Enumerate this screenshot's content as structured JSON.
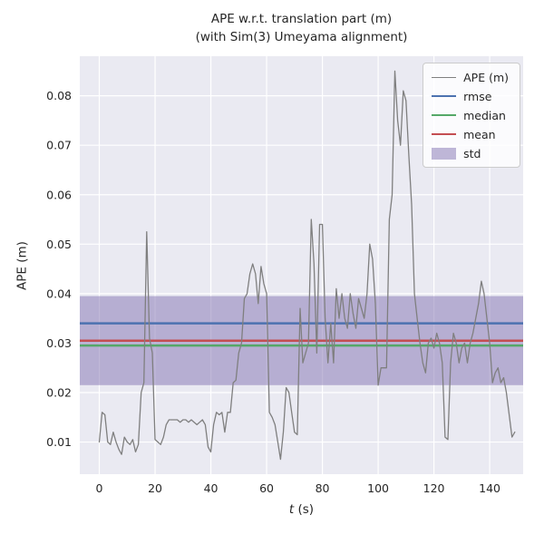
{
  "chart_data": {
    "type": "line",
    "title": "APE w.r.t. translation part (m)",
    "subtitle": "(with Sim(3) Umeyama alignment)",
    "xlabel_math": "t",
    "xlabel_unit": " (s)",
    "ylabel": "APE (m)",
    "xlim": [
      -7,
      152
    ],
    "ylim": [
      0.0035,
      0.088
    ],
    "grid": true,
    "legend_position": "upper right",
    "xticks": [
      0,
      20,
      40,
      60,
      80,
      100,
      120,
      140
    ],
    "xtick_labels": [
      "0",
      "20",
      "40",
      "60",
      "80",
      "100",
      "120",
      "140"
    ],
    "yticks": [
      0.01,
      0.02,
      0.03,
      0.04,
      0.05,
      0.06,
      0.07,
      0.08
    ],
    "ytick_labels": [
      "0.01",
      "0.02",
      "0.03",
      "0.04",
      "0.05",
      "0.06",
      "0.07",
      "0.08"
    ],
    "colors": {
      "axes_bg": "#EAEAF2",
      "grid": "#FFFFFF",
      "series": "#7f7f7f",
      "rmse": "#4C72B0",
      "median": "#55A868",
      "mean": "#C44E52",
      "std": "#8172B2",
      "text": "#262626"
    },
    "stats": {
      "rmse": 0.034,
      "median": 0.0295,
      "mean": 0.0305,
      "std": 0.009
    },
    "stat_lines": [
      {
        "name": "rmse",
        "value": 0.034,
        "color": "#4C72B0"
      },
      {
        "name": "median",
        "value": 0.0295,
        "color": "#55A868"
      },
      {
        "name": "mean",
        "value": 0.0305,
        "color": "#C44E52"
      }
    ],
    "std_patch": {
      "name": "std",
      "low": 0.0215,
      "high": 0.0395,
      "color": "#8172B2",
      "alpha": 0.5,
      "rgba": "rgba(129,114,178,0.5)"
    },
    "legend": [
      {
        "label": "APE (m)",
        "kind": "line",
        "color": "#7f7f7f",
        "weight": 1.5
      },
      {
        "label": "rmse",
        "kind": "line",
        "color": "#4C72B0",
        "weight": 2.5
      },
      {
        "label": "median",
        "kind": "line",
        "color": "#55A868",
        "weight": 2.5
      },
      {
        "label": "mean",
        "kind": "line",
        "color": "#C44E52",
        "weight": 2.5
      },
      {
        "label": "std",
        "kind": "patch",
        "rgba": "rgba(129,114,178,0.5)"
      }
    ],
    "series": [
      {
        "name": "APE (m)",
        "color": "#7f7f7f",
        "x": [
          0,
          1,
          2,
          3,
          4,
          5,
          6,
          7,
          8,
          9,
          10,
          11,
          12,
          13,
          14,
          15,
          16,
          17,
          18,
          19,
          20,
          21,
          22,
          23,
          24,
          25,
          26,
          27,
          28,
          29,
          30,
          31,
          32,
          33,
          34,
          35,
          36,
          37,
          38,
          39,
          40,
          41,
          42,
          43,
          44,
          45,
          46,
          47,
          48,
          49,
          50,
          51,
          52,
          53,
          54,
          55,
          56,
          57,
          58,
          59,
          60,
          61,
          62,
          63,
          64,
          65,
          66,
          67,
          68,
          69,
          70,
          71,
          72,
          73,
          74,
          75,
          76,
          77,
          78,
          79,
          80,
          81,
          82,
          83,
          84,
          85,
          86,
          87,
          88,
          89,
          90,
          91,
          92,
          93,
          94,
          95,
          96,
          97,
          98,
          99,
          100,
          101,
          102,
          103,
          104,
          105,
          106,
          107,
          108,
          109,
          110,
          111,
          112,
          113,
          114,
          115,
          116,
          117,
          118,
          119,
          120,
          121,
          122,
          123,
          124,
          125,
          126,
          127,
          128,
          129,
          130,
          131,
          132,
          133,
          134,
          135,
          136,
          137,
          138,
          139,
          140,
          141,
          142,
          143,
          144,
          145,
          146,
          147,
          148,
          149
        ],
        "y": [
          0.01,
          0.016,
          0.0155,
          0.01,
          0.0095,
          0.012,
          0.01,
          0.0085,
          0.0075,
          0.011,
          0.01,
          0.0095,
          0.0105,
          0.008,
          0.0095,
          0.02,
          0.022,
          0.0525,
          0.031,
          0.028,
          0.0105,
          0.01,
          0.0095,
          0.011,
          0.0135,
          0.0145,
          0.0145,
          0.0145,
          0.0145,
          0.014,
          0.0145,
          0.0145,
          0.014,
          0.0145,
          0.014,
          0.0135,
          0.014,
          0.0145,
          0.0135,
          0.009,
          0.008,
          0.0135,
          0.016,
          0.0155,
          0.016,
          0.012,
          0.016,
          0.016,
          0.022,
          0.0225,
          0.028,
          0.03,
          0.039,
          0.04,
          0.044,
          0.046,
          0.044,
          0.038,
          0.0455,
          0.042,
          0.04,
          0.016,
          0.015,
          0.0135,
          0.01,
          0.0065,
          0.012,
          0.021,
          0.02,
          0.016,
          0.012,
          0.0115,
          0.037,
          0.026,
          0.028,
          0.03,
          0.055,
          0.046,
          0.028,
          0.054,
          0.054,
          0.035,
          0.026,
          0.034,
          0.026,
          0.041,
          0.035,
          0.04,
          0.035,
          0.033,
          0.04,
          0.036,
          0.033,
          0.039,
          0.037,
          0.035,
          0.04,
          0.05,
          0.047,
          0.038,
          0.0215,
          0.025,
          0.025,
          0.025,
          0.055,
          0.06,
          0.085,
          0.075,
          0.07,
          0.081,
          0.079,
          0.068,
          0.058,
          0.04,
          0.035,
          0.03,
          0.026,
          0.024,
          0.03,
          0.031,
          0.029,
          0.032,
          0.03,
          0.026,
          0.011,
          0.0105,
          0.026,
          0.032,
          0.03,
          0.026,
          0.029,
          0.03,
          0.026,
          0.03,
          0.032,
          0.035,
          0.038,
          0.0425,
          0.04,
          0.035,
          0.03,
          0.022,
          0.024,
          0.025,
          0.022,
          0.023,
          0.02,
          0.0155,
          0.011,
          0.012
        ]
      }
    ]
  }
}
